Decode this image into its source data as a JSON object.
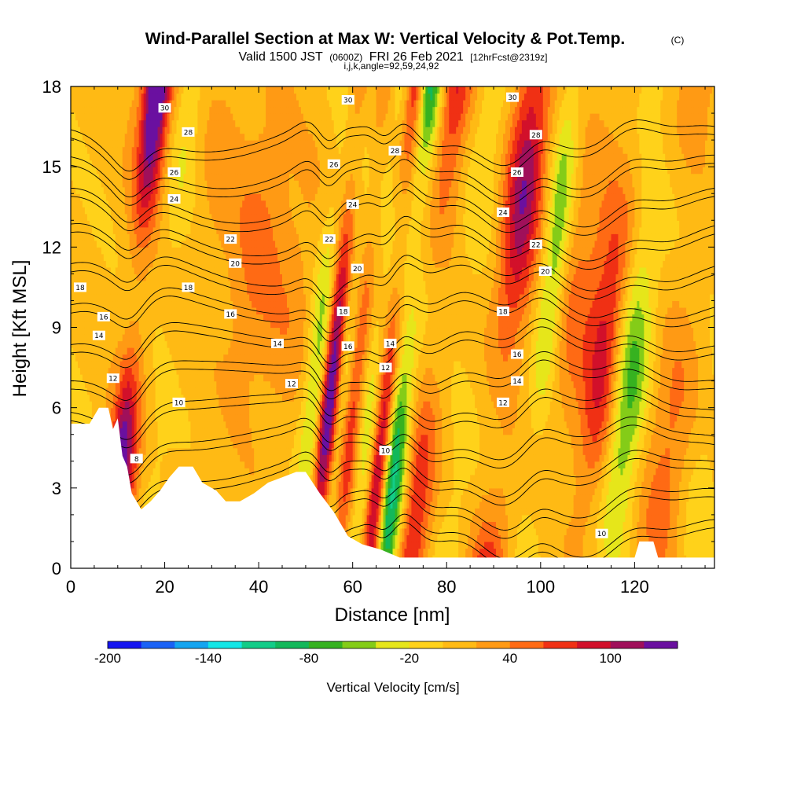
{
  "header": {
    "title": "Wind-Parallel Section at Max W: Vertical Velocity & Pot.Temp.",
    "title_unit": "(C)",
    "valid_a": "Valid 1500 JST",
    "valid_b": "(0600Z)",
    "valid_c": "FRI 26 Feb 2021",
    "valid_d": "[12hrFcst@2319z]",
    "indices": "i,j,k,angle=92,59,24,92"
  },
  "chart_data": {
    "type": "heatmap",
    "title": "Wind-Parallel Section at Max W: Vertical Velocity & Pot.Temp.",
    "xlabel": "Distance [nm]",
    "ylabel": "Height [Kft MSL]",
    "xlim": [
      0,
      137
    ],
    "ylim": [
      0,
      18
    ],
    "x_ticks": [
      "0",
      "20",
      "40",
      "60",
      "80",
      "100",
      "120"
    ],
    "y_ticks": [
      "0",
      "3",
      "6",
      "9",
      "12",
      "15",
      "18"
    ],
    "velocity_bands": [
      {
        "x": 11,
        "w": 2.2,
        "amp": 190
      },
      {
        "x": 9.5,
        "w": 1.5,
        "amp": -60
      },
      {
        "x": 14,
        "w": 2.5,
        "amp": 45
      },
      {
        "x": 18,
        "w": 3,
        "amp": -35
      },
      {
        "x": 26,
        "w": 4,
        "amp": 20
      },
      {
        "x": 36,
        "w": 4,
        "amp": 35
      },
      {
        "x": 45,
        "w": 5,
        "amp": 25
      },
      {
        "x": 52,
        "w": 2,
        "amp": -70
      },
      {
        "x": 55,
        "w": 1.5,
        "amp": 170
      },
      {
        "x": 57.5,
        "w": 1.5,
        "amp": -80
      },
      {
        "x": 60,
        "w": 2,
        "amp": 100
      },
      {
        "x": 63,
        "w": 2,
        "amp": -60
      },
      {
        "x": 67,
        "w": 1.5,
        "amp": 150
      },
      {
        "x": 70,
        "w": 2.2,
        "amp": -140
      },
      {
        "x": 75,
        "w": 3,
        "amp": 85
      },
      {
        "x": 83,
        "w": 3,
        "amp": -25
      },
      {
        "x": 92,
        "w": 3,
        "amp": 110
      },
      {
        "x": 100,
        "w": 2,
        "amp": -75
      },
      {
        "x": 105,
        "w": 4,
        "amp": 40
      },
      {
        "x": 113,
        "w": 3,
        "amp": 90
      },
      {
        "x": 118,
        "w": 3,
        "amp": -85
      },
      {
        "x": 128,
        "w": 4,
        "amp": 45
      },
      {
        "x": 135,
        "w": 3,
        "amp": -20
      }
    ],
    "terrain_kft": [
      [
        0,
        5.4
      ],
      [
        4,
        5.4
      ],
      [
        6,
        6.0
      ],
      [
        8,
        6.0
      ],
      [
        9,
        5.2
      ],
      [
        10,
        5.6
      ],
      [
        11,
        4.2
      ],
      [
        12,
        3.8
      ],
      [
        13,
        2.8
      ],
      [
        15,
        2.2
      ],
      [
        17,
        2.5
      ],
      [
        19,
        2.9
      ],
      [
        21,
        3.4
      ],
      [
        23,
        3.8
      ],
      [
        26,
        3.8
      ],
      [
        28,
        3.2
      ],
      [
        31,
        2.9
      ],
      [
        33,
        2.5
      ],
      [
        36,
        2.5
      ],
      [
        39,
        2.8
      ],
      [
        42,
        3.2
      ],
      [
        45,
        3.4
      ],
      [
        48,
        3.6
      ],
      [
        50,
        3.6
      ],
      [
        53,
        2.8
      ],
      [
        56,
        2.1
      ],
      [
        59,
        1.2
      ],
      [
        62,
        0.9
      ],
      [
        66,
        0.7
      ],
      [
        70,
        0.4
      ],
      [
        80,
        0.4
      ],
      [
        90,
        0.4
      ],
      [
        100,
        0.4
      ],
      [
        110,
        0.4
      ],
      [
        120,
        0.4
      ],
      [
        121,
        1.0
      ],
      [
        124,
        1.0
      ],
      [
        125,
        0.4
      ],
      [
        137,
        0.4
      ]
    ],
    "theta_levels": [
      6,
      8,
      10,
      12,
      14,
      16,
      18,
      20,
      22,
      24,
      26,
      28,
      30
    ],
    "theta_labels": [
      {
        "v": "30",
        "x": 20,
        "y": 17.2
      },
      {
        "v": "28",
        "x": 25,
        "y": 16.3
      },
      {
        "v": "26",
        "x": 22,
        "y": 14.8
      },
      {
        "v": "24",
        "x": 22,
        "y": 13.8
      },
      {
        "v": "22",
        "x": 34,
        "y": 12.3
      },
      {
        "v": "20",
        "x": 35,
        "y": 11.4
      },
      {
        "v": "18",
        "x": 2,
        "y": 10.5
      },
      {
        "v": "18",
        "x": 25,
        "y": 10.5
      },
      {
        "v": "16",
        "x": 7,
        "y": 9.4
      },
      {
        "v": "16",
        "x": 34,
        "y": 9.5
      },
      {
        "v": "14",
        "x": 6,
        "y": 8.7
      },
      {
        "v": "14",
        "x": 44,
        "y": 8.4
      },
      {
        "v": "12",
        "x": 9,
        "y": 7.1
      },
      {
        "v": "12",
        "x": 47,
        "y": 6.9
      },
      {
        "v": "10",
        "x": 23,
        "y": 6.2
      },
      {
        "v": "8",
        "x": 14,
        "y": 4.1
      },
      {
        "v": "30",
        "x": 59,
        "y": 17.5
      },
      {
        "v": "28",
        "x": 69,
        "y": 15.6
      },
      {
        "v": "26",
        "x": 56,
        "y": 15.1
      },
      {
        "v": "24",
        "x": 60,
        "y": 13.6
      },
      {
        "v": "22",
        "x": 55,
        "y": 12.3
      },
      {
        "v": "20",
        "x": 61,
        "y": 11.2
      },
      {
        "v": "18",
        "x": 58,
        "y": 9.6
      },
      {
        "v": "16",
        "x": 59,
        "y": 8.3
      },
      {
        "v": "14",
        "x": 68,
        "y": 8.4
      },
      {
        "v": "12",
        "x": 67,
        "y": 7.5
      },
      {
        "v": "10",
        "x": 67,
        "y": 4.4
      },
      {
        "v": "30",
        "x": 94,
        "y": 17.6
      },
      {
        "v": "28",
        "x": 99,
        "y": 16.2
      },
      {
        "v": "26",
        "x": 95,
        "y": 14.8
      },
      {
        "v": "24",
        "x": 92,
        "y": 13.3
      },
      {
        "v": "22",
        "x": 99,
        "y": 12.1
      },
      {
        "v": "20",
        "x": 101,
        "y": 11.1
      },
      {
        "v": "18",
        "x": 92,
        "y": 9.6
      },
      {
        "v": "16",
        "x": 95,
        "y": 8.0
      },
      {
        "v": "14",
        "x": 95,
        "y": 7.0
      },
      {
        "v": "12",
        "x": 92,
        "y": 6.2
      },
      {
        "v": "10",
        "x": 113,
        "y": 1.3
      }
    ],
    "colorbar": {
      "colors": [
        "#1515f0",
        "#1a62f5",
        "#14a5f0",
        "#13e6e6",
        "#13cc88",
        "#13b85a",
        "#36b220",
        "#84cc18",
        "#e6e61a",
        "#ffd21a",
        "#ffba14",
        "#ff9a14",
        "#ff6a14",
        "#f03014",
        "#d2102a",
        "#a0105a",
        "#6a10a0"
      ],
      "tick_labels": [
        {
          "label": "-200",
          "value": -200
        },
        {
          "label": "-140",
          "value": -140
        },
        {
          "label": "-80",
          "value": -80
        },
        {
          "label": "-20",
          "value": -20
        },
        {
          "label": "40",
          "value": 40
        },
        {
          "label": "100",
          "value": 100
        }
      ],
      "vmin": -200,
      "vmax": 140,
      "label": "Vertical Velocity [cm/s]"
    }
  }
}
